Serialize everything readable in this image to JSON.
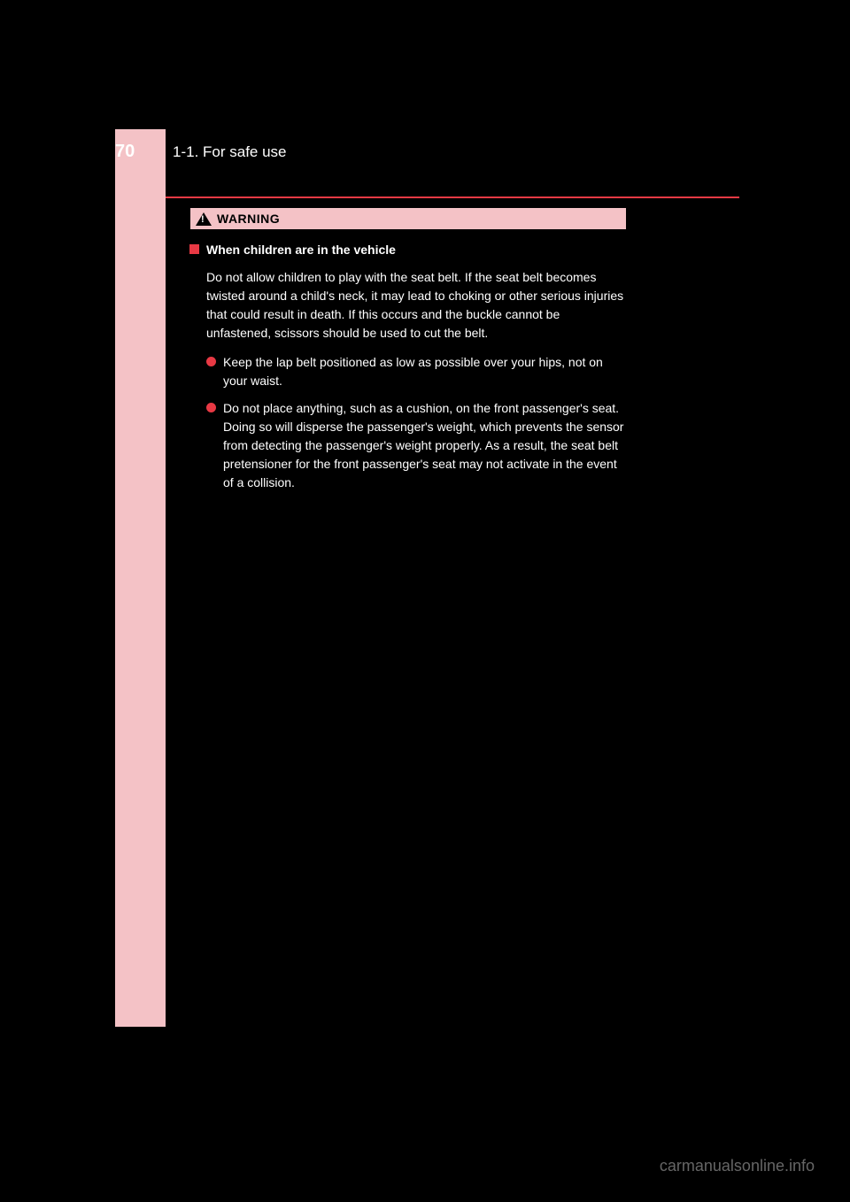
{
  "page": {
    "number": "70",
    "section": "1-1. For safe use"
  },
  "warning": {
    "label": "WARNING"
  },
  "content": {
    "title": "When children are in the vehicle",
    "intro": "Do not allow children to play with the seat belt. If the seat belt becomes twisted around a child's neck, it may lead to choking or other serious injuries that could result in death. If this occurs and the buckle cannot be unfastened, scissors should be used to cut the belt.",
    "bullets": [
      "Keep the lap belt positioned as low as possible over your hips, not on your waist.",
      "Do not place anything, such as a cushion, on the front passenger's seat. Doing so will disperse the passenger's weight, which prevents the sensor from detecting the passenger's weight properly. As a result, the seat belt pretensioner for the front passenger's seat may not activate in the event of a collision."
    ]
  },
  "watermark": "carmanualsonline.info",
  "colors": {
    "accent": "#e83944",
    "sidebar": "#f4c2c6",
    "background": "#000",
    "text": "#fff"
  }
}
